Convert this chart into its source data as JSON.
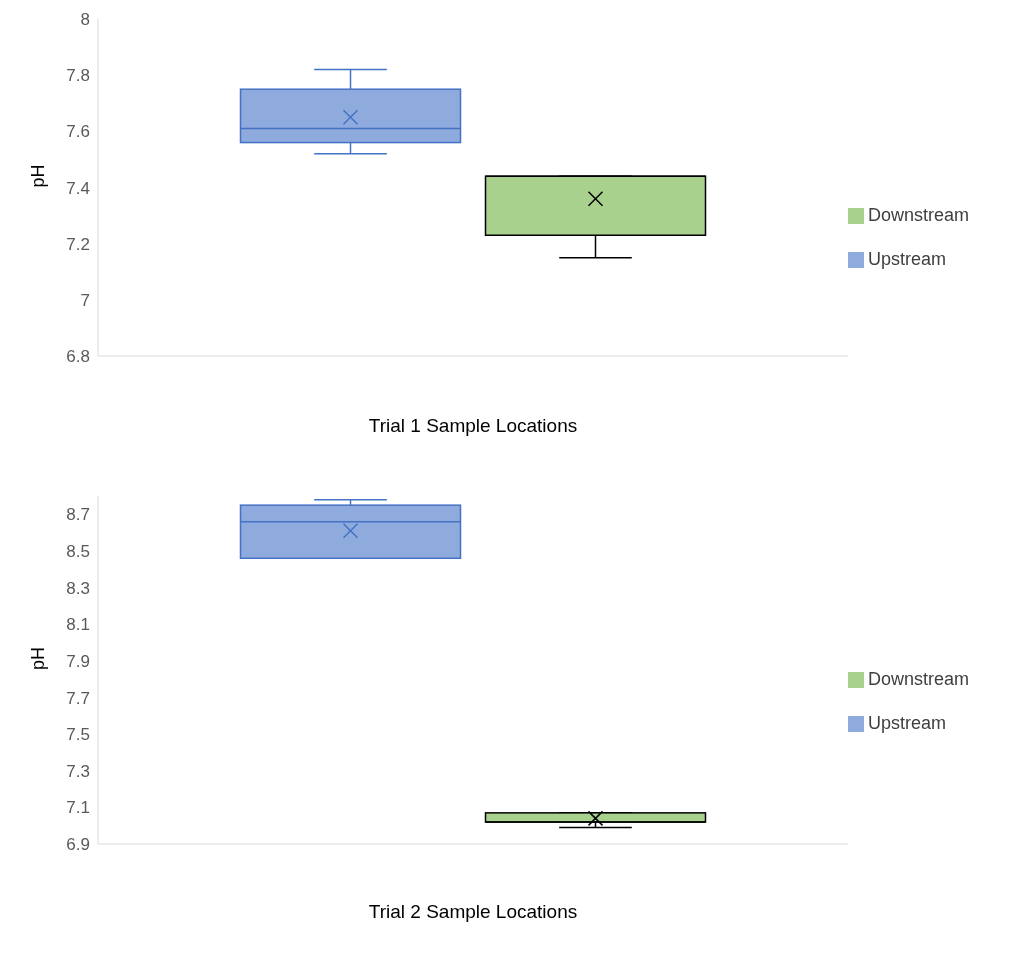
{
  "chart_data": [
    {
      "type": "box",
      "xlabel": "Trial 1 Sample Locations",
      "ylabel": "pH",
      "categories": [
        null
      ],
      "ylim": [
        6.8,
        8
      ],
      "yticks": [
        6.8,
        7,
        7.2,
        7.4,
        7.6,
        7.8,
        8
      ],
      "grid": false,
      "legend": "right",
      "series": [
        {
          "name": "Upstream",
          "color": "#8faadc",
          "boxes": [
            {
              "low": 7.52,
              "q1": 7.56,
              "median": 7.61,
              "q3": 7.75,
              "high": 7.82,
              "mean": 7.65
            }
          ]
        },
        {
          "name": "Downstream",
          "color": "#a9d18e",
          "boxes": [
            {
              "low": 7.15,
              "q1": 7.23,
              "median": 7.44,
              "q3": 7.44,
              "high": 7.44,
              "mean": 7.36
            }
          ]
        }
      ]
    },
    {
      "type": "box",
      "xlabel": "Trial 2 Sample Locations",
      "ylabel": "pH",
      "categories": [
        null
      ],
      "ylim": [
        6.9,
        8.8
      ],
      "yticks": [
        6.9,
        7.1,
        7.3,
        7.5,
        7.7,
        7.9,
        8.1,
        8.3,
        8.5,
        8.7
      ],
      "grid": false,
      "legend": "right",
      "series": [
        {
          "name": "Upstream",
          "color": "#8faadc",
          "boxes": [
            {
              "low": 8.46,
              "q1": 8.46,
              "median": 8.66,
              "q3": 8.75,
              "high": 8.78,
              "mean": 8.61
            }
          ]
        },
        {
          "name": "Downstream",
          "color": "#a9d18e",
          "boxes": [
            {
              "low": 6.99,
              "q1": 7.02,
              "median": 7.02,
              "q3": 7.07,
              "high": 7.07,
              "mean": 7.04
            }
          ]
        }
      ]
    }
  ]
}
